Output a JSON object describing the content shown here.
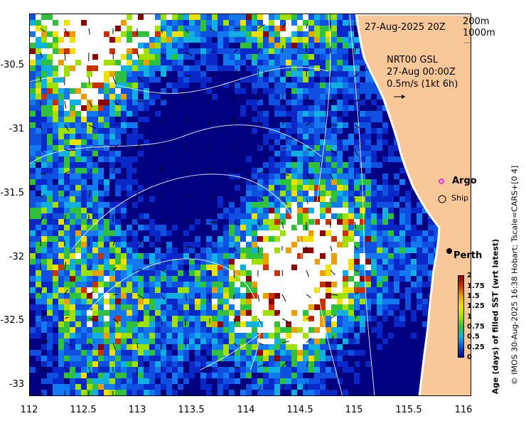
{
  "map": {
    "timestamp": "27-Aug-2025 20Z",
    "depth_contours": [
      "200m",
      "1000m"
    ],
    "source_lines": [
      "NRT00 GSL",
      "27-Aug 00:00Z",
      "0.5m/s (1kt 6h)"
    ],
    "argo_label": "Argo",
    "ship_label": "Ship",
    "city_label": "Perth",
    "credit": "© IMOS 30-Aug-2025 16:38 Hobart; Tscale=CARS+[0 4]",
    "colorbar": {
      "title": "Age (days) of filled SST (wrt latest)",
      "ticks": [
        "2",
        "1.75",
        "1.5",
        "1.25",
        "1",
        "0.75",
        "0.5",
        "0.25",
        "0"
      ],
      "colors": [
        "#8b0000",
        "#c83200",
        "#e8a000",
        "#f0e000",
        "#a0e000",
        "#30c040",
        "#10b0e0",
        "#1050e0",
        "#000080"
      ]
    },
    "colors": {
      "land": "#f9c898",
      "coast": "#ffffff"
    }
  },
  "axes": {
    "x_ticks": [
      "112",
      "112.5",
      "113",
      "113.5",
      "114",
      "114.5",
      "115",
      "115.5",
      "116"
    ],
    "y_ticks": [
      "-30.5",
      "-31",
      "-31.5",
      "-32",
      "-32.5",
      "-33"
    ]
  }
}
